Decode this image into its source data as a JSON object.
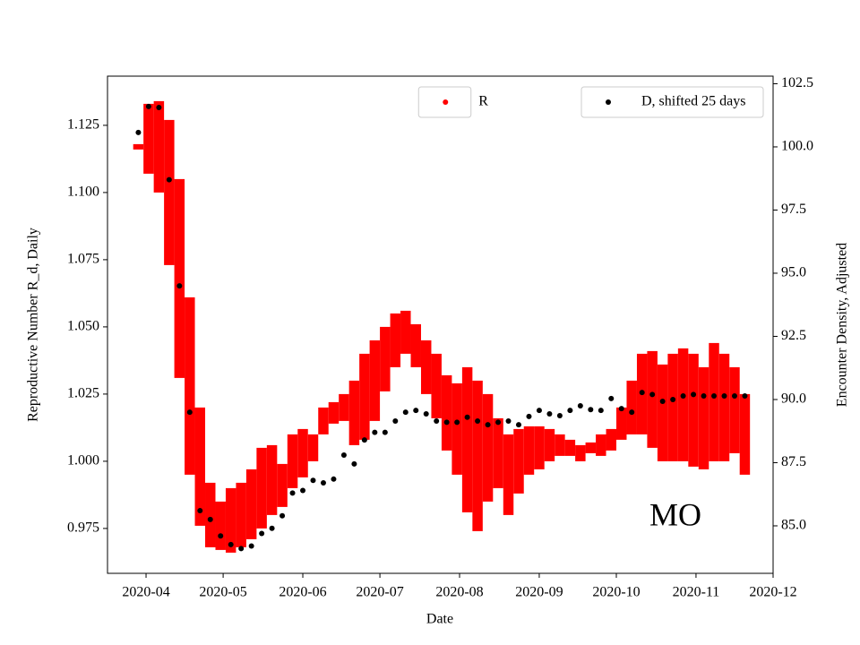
{
  "chart_data": {
    "type": "errorbar_scatter",
    "annotation": "MO",
    "xlabel": "Date",
    "ylabel": "Reproductive Number R_d, Daily",
    "y2label": "Encounter Density, Adjusted",
    "x": [
      "2020-03-29",
      "2020-04-02",
      "2020-04-06",
      "2020-04-10",
      "2020-04-14",
      "2020-04-18",
      "2020-04-22",
      "2020-04-26",
      "2020-04-30",
      "2020-05-04",
      "2020-05-08",
      "2020-05-12",
      "2020-05-16",
      "2020-05-20",
      "2020-05-24",
      "2020-05-28",
      "2020-06-01",
      "2020-06-05",
      "2020-06-09",
      "2020-06-13",
      "2020-06-17",
      "2020-06-21",
      "2020-06-25",
      "2020-06-29",
      "2020-07-03",
      "2020-07-07",
      "2020-07-11",
      "2020-07-15",
      "2020-07-19",
      "2020-07-23",
      "2020-07-27",
      "2020-07-31",
      "2020-08-04",
      "2020-08-08",
      "2020-08-12",
      "2020-08-16",
      "2020-08-20",
      "2020-08-24",
      "2020-08-28",
      "2020-09-01",
      "2020-09-05",
      "2020-09-09",
      "2020-09-13",
      "2020-09-17",
      "2020-09-21",
      "2020-09-25",
      "2020-09-29",
      "2020-10-03",
      "2020-10-07",
      "2020-10-11",
      "2020-10-15",
      "2020-10-19",
      "2020-10-23",
      "2020-10-27",
      "2020-10-31",
      "2020-11-04",
      "2020-11-08",
      "2020-11-12",
      "2020-11-16",
      "2020-11-20"
    ],
    "series": [
      {
        "name": "R",
        "color": "#ff0000",
        "axis": "y",
        "legend": "upper center",
        "values": [
          1.117,
          1.12,
          1.117,
          1.1,
          1.068,
          1.028,
          0.998,
          0.98,
          0.976,
          0.978,
          0.98,
          0.984,
          0.99,
          0.993,
          0.991,
          1.0,
          1.003,
          1.005,
          1.015,
          1.018,
          1.02,
          1.018,
          1.024,
          1.03,
          1.038,
          1.045,
          1.048,
          1.043,
          1.035,
          1.028,
          1.018,
          1.012,
          1.008,
          1.002,
          1.005,
          1.003,
          0.995,
          1.0,
          1.004,
          1.005,
          1.006,
          1.006,
          1.005,
          1.003,
          1.005,
          1.006,
          1.008,
          1.014,
          1.02,
          1.025,
          1.023,
          1.018,
          1.02,
          1.021,
          1.019,
          1.016,
          1.022,
          1.02,
          1.019,
          1.01
        ],
        "errors": [
          0.001,
          0.013,
          0.017,
          0.027,
          0.037,
          0.033,
          0.022,
          0.012,
          0.009,
          0.012,
          0.012,
          0.013,
          0.015,
          0.013,
          0.008,
          0.01,
          0.009,
          0.005,
          0.005,
          0.004,
          0.005,
          0.012,
          0.016,
          0.015,
          0.012,
          0.01,
          0.008,
          0.008,
          0.01,
          0.012,
          0.014,
          0.017,
          0.027,
          0.028,
          0.02,
          0.013,
          0.015,
          0.012,
          0.009,
          0.008,
          0.006,
          0.004,
          0.003,
          0.003,
          0.002,
          0.004,
          0.004,
          0.006,
          0.01,
          0.015,
          0.018,
          0.018,
          0.02,
          0.021,
          0.021,
          0.019,
          0.022,
          0.02,
          0.016,
          0.015
        ]
      },
      {
        "name": "D, shifted 25 days",
        "color": "#000000",
        "axis": "y2",
        "legend": "upper right",
        "values": [
          100.57,
          101.6,
          101.56,
          98.7,
          94.5,
          89.5,
          85.6,
          85.25,
          84.6,
          84.26,
          84.1,
          84.2,
          84.7,
          84.9,
          85.4,
          86.3,
          86.4,
          86.8,
          86.7,
          86.85,
          87.8,
          87.45,
          88.4,
          88.7,
          88.7,
          89.15,
          89.5,
          89.57,
          89.43,
          89.15,
          89.1,
          89.1,
          89.3,
          89.15,
          89.0,
          89.1,
          89.15,
          89.0,
          89.33,
          89.57,
          89.43,
          89.36,
          89.57,
          89.75,
          89.6,
          89.57,
          90.04,
          89.64,
          89.5,
          90.28,
          90.2,
          89.93,
          90.0,
          90.14,
          90.2,
          90.14,
          90.14,
          90.14,
          90.14,
          90.14
        ]
      }
    ],
    "xlim": [
      "2020-03-17",
      "2020-12-01"
    ],
    "xticks": [
      {
        "value": "2020-04-01",
        "label": "2020-04"
      },
      {
        "value": "2020-05-01",
        "label": "2020-05"
      },
      {
        "value": "2020-06-01",
        "label": "2020-06"
      },
      {
        "value": "2020-07-01",
        "label": "2020-07"
      },
      {
        "value": "2020-08-01",
        "label": "2020-08"
      },
      {
        "value": "2020-09-01",
        "label": "2020-09"
      },
      {
        "value": "2020-10-01",
        "label": "2020-10"
      },
      {
        "value": "2020-11-01",
        "label": "2020-11"
      },
      {
        "value": "2020-12-01",
        "label": "2020-12"
      }
    ],
    "ylim": [
      0.9583,
      1.1433
    ],
    "yticks": [
      0.975,
      {
        "value": 1,
        "label": "1.000"
      },
      1.025,
      {
        "value": 1.05,
        "label": "1.050"
      },
      1.075,
      {
        "value": 1.1,
        "label": "1.100"
      },
      1.125
    ],
    "y2lim": [
      83.12,
      102.8
    ],
    "y2ticks": [
      {
        "value": 85,
        "label": "85.0"
      },
      87.5,
      {
        "value": 90,
        "label": "90.0"
      },
      92.5,
      {
        "value": 95,
        "label": "95.0"
      },
      97.5,
      {
        "value": 100,
        "label": "100.0"
      },
      102.5
    ],
    "ytick_color": "#ff0000"
  }
}
